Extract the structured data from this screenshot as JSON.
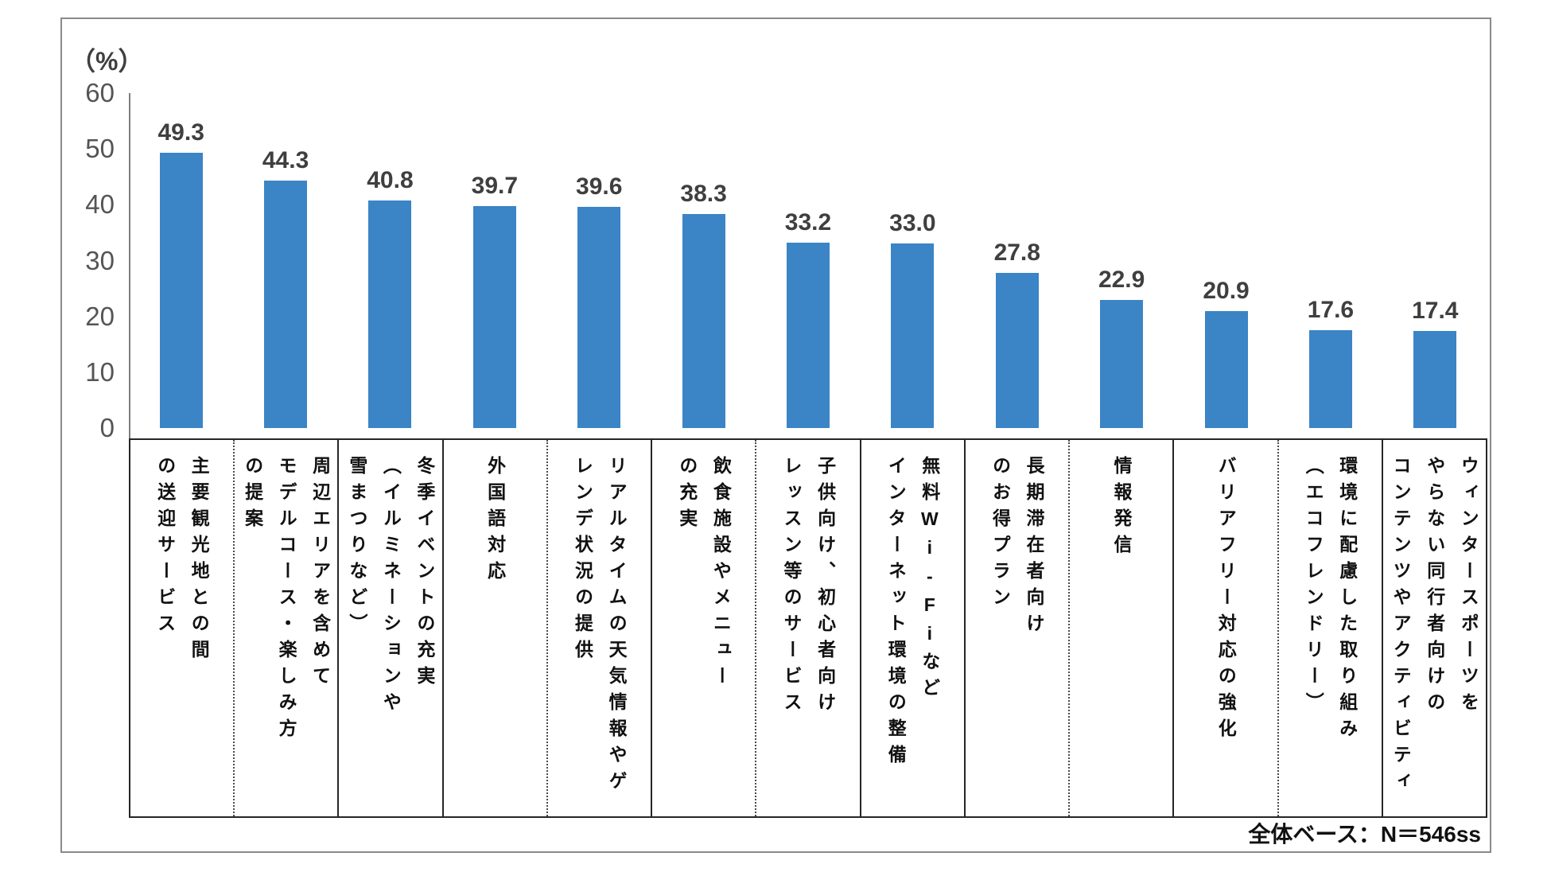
{
  "chart_data": {
    "type": "bar",
    "title": "",
    "xlabel": "",
    "ylabel": "",
    "y_axis_unit": "（%）",
    "ylim": [
      0,
      60
    ],
    "y_ticks": [
      60,
      50,
      40,
      30,
      20,
      10,
      0
    ],
    "grid": false,
    "legend": "none",
    "bar_color": "#3B84C6",
    "categories": [
      "主要観光地との間\nの送迎サービス",
      "周辺エリアを含めて\nモデルコース・楽しみ方\nの提案",
      "冬季イベントの充実\n（イルミネーションや\n雪まつりなど）",
      "外国語対応",
      "リアルタイムの天気情報やゲ\nレンデ状況の提供",
      "飲食施設やメニュー\nの充実",
      "子供向け、初心者向け\nレッスン等のサービス",
      "無料Wi-Fiなど\nインターネット環境の整備",
      "長期滞在者向け\nのお得プラン",
      "情報発信",
      "バリアフリー対応の強化",
      "環境に配慮した取り組み\n（エコフレンドリー）",
      "ウィンタースポーツを\nやらない同行者向けの\nコンテンツやアクティビティ"
    ],
    "values": [
      49.3,
      44.3,
      40.8,
      39.7,
      39.6,
      38.3,
      33.2,
      33.0,
      27.8,
      22.9,
      20.9,
      17.6,
      17.4
    ],
    "value_labels": [
      "49.3",
      "44.3",
      "40.8",
      "39.7",
      "39.6",
      "38.3",
      "33.2",
      "33.0",
      "27.8",
      "22.9",
      "20.9",
      "17.6",
      "17.4"
    ],
    "separators": [
      "dotted",
      "solid",
      "solid",
      "dotted",
      "solid",
      "dotted",
      "solid",
      "solid",
      "dotted",
      "solid",
      "dotted",
      "solid"
    ],
    "note": "全体ベース：N＝546ss"
  }
}
